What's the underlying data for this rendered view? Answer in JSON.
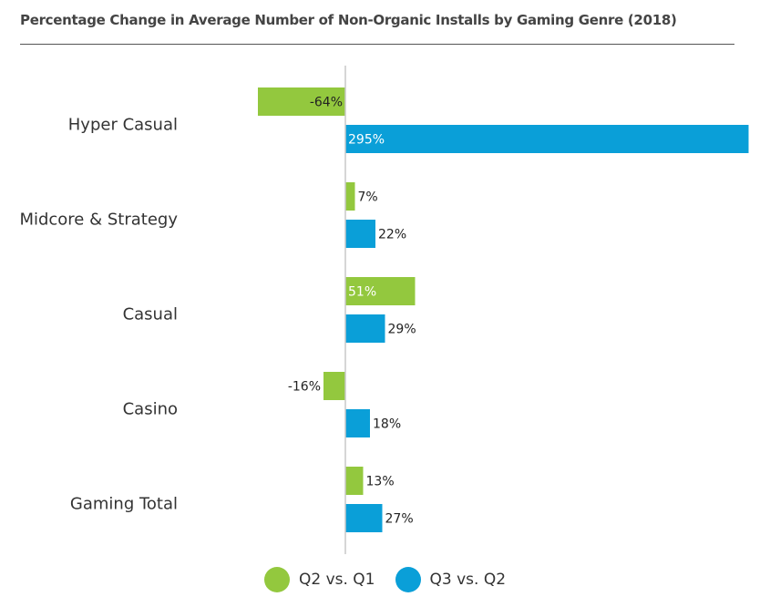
{
  "chart_data": {
    "type": "bar",
    "orientation": "horizontal",
    "title": "Percentage Change in Average Number of Non-Organic Installs by Gaming Genre (2018)",
    "categories": [
      "Hyper Casual",
      "Midcore & Strategy",
      "Casual",
      "Casino",
      "Gaming Total"
    ],
    "series": [
      {
        "name": "Q2 vs. Q1",
        "color": "#93c83e",
        "values": [
          -64,
          7,
          51,
          -16,
          13
        ],
        "labels": [
          "-64%",
          "7%",
          "51%",
          "-16%",
          "13%"
        ]
      },
      {
        "name": "Q3 vs. Q2",
        "color": "#0a9fd8",
        "values": [
          295,
          22,
          29,
          18,
          27
        ],
        "labels": [
          "295%",
          "22%",
          "29%",
          "18%",
          "27%"
        ]
      }
    ],
    "xlim": [
      -66,
      295
    ],
    "grid": false,
    "legend_position": "bottom"
  }
}
